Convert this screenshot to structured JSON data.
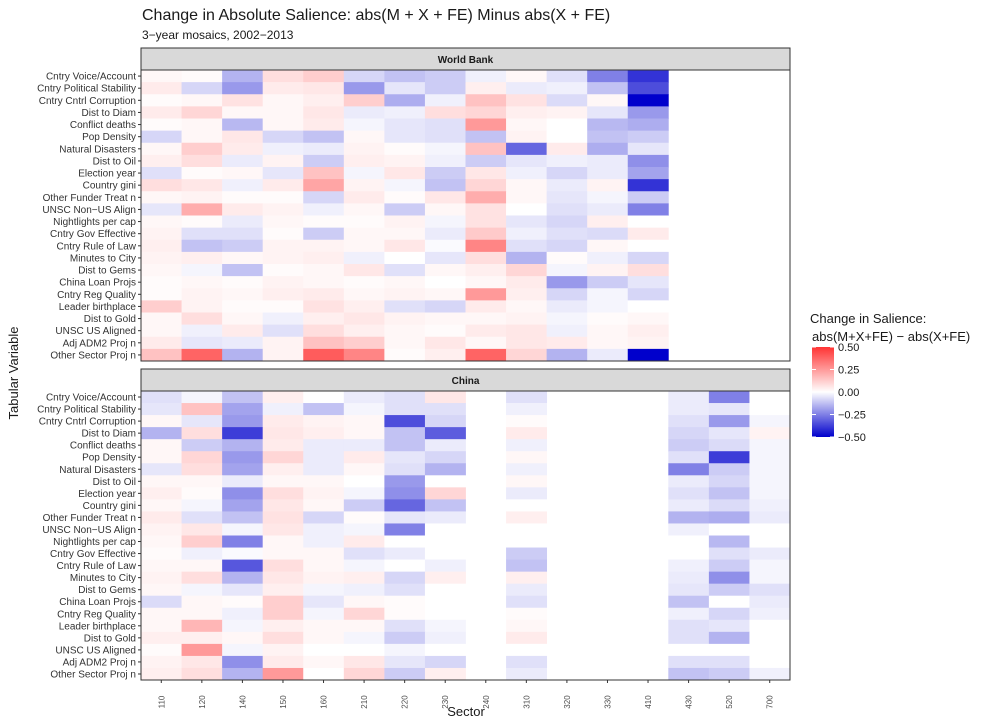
{
  "chart_data": {
    "type": "heatmap",
    "title": "Change in Absolute Salience: abs(M + X + FE) Minus abs(X + FE)",
    "subtitle": "3−year mosaics, 2002−2013",
    "xlabel": "Sector",
    "ylabel": "Tabular Variable",
    "x_categories": [
      "110",
      "120",
      "140",
      "150",
      "160",
      "210",
      "220",
      "230",
      "240",
      "310",
      "320",
      "330",
      "410",
      "430",
      "520",
      "700"
    ],
    "y_categories": [
      "Cntry Voice/Account",
      "Cntry Political Stability",
      "Cntry Cntrl Corruption",
      "Dist to Diam",
      "Conflict deaths",
      "Pop Density",
      "Natural Disasters",
      "Dist to Oil",
      "Election year",
      "Country gini",
      "Other Funder Treat n",
      "UNSC Non−US Align",
      "Nightlights per cap",
      "Cntry Gov Effective",
      "Cntry Rule of Law",
      "Minutes to City",
      "Dist to Gems",
      "China Loan Projs",
      "Cntry Reg Quality",
      "Leader birthplace",
      "Dist to Gold",
      "UNSC US Aligned",
      "Adj ADM2 Proj n",
      "Other Sector Proj n"
    ],
    "legend": {
      "title_line1": "Change in Salience:",
      "title_line2": "abs(M+X+FE) − abs(X+FE)",
      "ticks": [
        "0.50",
        "0.25",
        "0.00",
        "−0.25",
        "−0.50"
      ],
      "tick_values": [
        0.5,
        0.25,
        0,
        -0.25,
        -0.5
      ],
      "range": [
        -0.5,
        0.5
      ],
      "colors": {
        "high": "#ff3333",
        "mid": "#ffffff",
        "low": "#0000cc"
      },
      "position": "right"
    },
    "panels": [
      {
        "name": "World Bank",
        "sectors": [
          "110",
          "120",
          "140",
          "150",
          "160",
          "210",
          "220",
          "230",
          "240",
          "310",
          "320",
          "330",
          "410"
        ],
        "values": [
          [
            0.02,
            0.01,
            -0.15,
            0.08,
            0.12,
            -0.08,
            -0.12,
            -0.1,
            -0.03,
            0.02,
            -0.06,
            -0.25,
            -0.4
          ],
          [
            0.05,
            -0.08,
            -0.2,
            0.05,
            0.06,
            -0.2,
            -0.05,
            -0.1,
            0.04,
            -0.04,
            -0.03,
            -0.12,
            -0.35
          ],
          [
            0.01,
            0.02,
            0.07,
            0.02,
            0.04,
            0.12,
            -0.16,
            -0.03,
            0.15,
            0.07,
            -0.07,
            0.02,
            -0.5
          ],
          [
            0.05,
            0.1,
            0.02,
            0.02,
            0.06,
            -0.04,
            -0.03,
            0.08,
            0.1,
            0.04,
            0.03,
            -0.05,
            -0.2
          ],
          [
            0.01,
            0.02,
            -0.14,
            0.02,
            0.05,
            -0.02,
            -0.05,
            -0.06,
            0.25,
            0.02,
            0.0,
            -0.14,
            -0.16
          ],
          [
            -0.08,
            0.02,
            0.06,
            -0.08,
            -0.12,
            0.02,
            -0.05,
            -0.06,
            -0.12,
            0.03,
            0.0,
            -0.12,
            -0.1
          ],
          [
            0.02,
            0.12,
            0.05,
            -0.03,
            -0.04,
            0.03,
            0.01,
            -0.02,
            0.15,
            -0.3,
            0.05,
            -0.16,
            -0.05
          ],
          [
            0.04,
            0.08,
            -0.04,
            0.03,
            -0.1,
            0.04,
            0.03,
            -0.03,
            -0.1,
            -0.05,
            -0.03,
            -0.04,
            -0.22
          ],
          [
            -0.06,
            0.01,
            0.02,
            -0.05,
            0.15,
            -0.02,
            0.06,
            -0.1,
            0.06,
            -0.03,
            -0.08,
            -0.04,
            -0.18
          ],
          [
            0.08,
            0.06,
            -0.03,
            0.05,
            0.22,
            0.03,
            -0.02,
            -0.12,
            0.1,
            0.02,
            -0.04,
            0.03,
            -0.4
          ],
          [
            0.02,
            0.03,
            0.01,
            0.01,
            -0.08,
            0.05,
            0.01,
            0.06,
            0.2,
            0.02,
            -0.05,
            -0.02,
            -0.1
          ],
          [
            -0.05,
            0.2,
            0.05,
            0.03,
            -0.03,
            0.02,
            -0.1,
            0.02,
            0.07,
            0.0,
            -0.06,
            -0.04,
            -0.25
          ],
          [
            0.02,
            0.01,
            -0.04,
            0.02,
            0.01,
            0.01,
            0.03,
            -0.02,
            0.07,
            -0.05,
            -0.08,
            0.04,
            0.0
          ],
          [
            0.03,
            -0.06,
            -0.06,
            0.01,
            -0.1,
            0.02,
            0.02,
            -0.04,
            0.13,
            -0.03,
            -0.06,
            -0.07,
            0.05
          ],
          [
            0.04,
            -0.12,
            -0.1,
            0.03,
            0.03,
            0.02,
            0.06,
            -0.01,
            0.3,
            -0.06,
            -0.08,
            0.02,
            0.0
          ],
          [
            0.03,
            0.04,
            0.02,
            0.03,
            0.04,
            -0.03,
            0.0,
            -0.05,
            0.08,
            -0.15,
            0.01,
            -0.03,
            -0.08
          ],
          [
            0.02,
            -0.02,
            -0.12,
            0.01,
            0.02,
            0.06,
            -0.06,
            0.02,
            0.04,
            0.1,
            -0.02,
            0.03,
            0.08
          ],
          [
            0.01,
            0.02,
            0.01,
            0.03,
            0.02,
            0.01,
            0.02,
            0.0,
            0.02,
            0.05,
            -0.2,
            -0.1,
            -0.05
          ],
          [
            0.01,
            0.03,
            0.02,
            0.04,
            0.05,
            0.02,
            0.03,
            0.02,
            0.25,
            0.04,
            -0.08,
            -0.02,
            -0.08
          ],
          [
            0.12,
            0.03,
            0.01,
            0.01,
            0.07,
            0.04,
            -0.06,
            -0.08,
            0.05,
            0.02,
            -0.04,
            -0.02,
            0.0
          ],
          [
            0.02,
            0.08,
            0.02,
            -0.03,
            0.04,
            0.06,
            0.03,
            0.02,
            0.02,
            0.03,
            -0.02,
            0.01,
            0.02
          ],
          [
            0.02,
            -0.03,
            0.05,
            -0.06,
            0.08,
            0.04,
            0.02,
            0.01,
            0.05,
            0.06,
            -0.03,
            0.02,
            0.04
          ],
          [
            0.05,
            -0.05,
            -0.04,
            0.03,
            0.15,
            0.12,
            0.02,
            0.06,
            0.02,
            0.06,
            0.05,
            0.02,
            0.03
          ],
          [
            0.15,
            0.38,
            -0.15,
            0.03,
            0.4,
            0.3,
            0.01,
            0.04,
            0.38,
            0.1,
            -0.15,
            -0.04,
            -0.62
          ]
        ]
      },
      {
        "name": "China",
        "sectors": [
          "110",
          "120",
          "140",
          "150",
          "160",
          "210",
          "220",
          "230",
          "310",
          "430",
          "520",
          "700"
        ],
        "values": [
          [
            -0.06,
            -0.02,
            -0.12,
            0.04,
            0.0,
            -0.04,
            -0.06,
            0.06,
            -0.06,
            -0.04,
            -0.25,
            0.0
          ],
          [
            -0.05,
            0.15,
            -0.18,
            -0.03,
            -0.12,
            -0.02,
            -0.06,
            -0.06,
            -0.03,
            -0.04,
            -0.05,
            0.0
          ],
          [
            0.02,
            -0.05,
            -0.2,
            0.05,
            0.03,
            0.02,
            -0.35,
            -0.08,
            0.01,
            -0.06,
            -0.2,
            -0.02
          ],
          [
            -0.15,
            0.08,
            -0.38,
            0.06,
            0.04,
            0.02,
            -0.12,
            -0.32,
            0.05,
            -0.08,
            -0.05,
            0.03
          ],
          [
            0.02,
            -0.1,
            -0.15,
            0.05,
            -0.04,
            -0.04,
            -0.12,
            -0.04,
            -0.03,
            -0.1,
            -0.07,
            -0.02
          ],
          [
            0.02,
            0.1,
            -0.2,
            0.1,
            -0.04,
            0.05,
            -0.05,
            -0.08,
            0.02,
            -0.06,
            -0.38,
            -0.02
          ],
          [
            -0.05,
            0.08,
            -0.18,
            0.04,
            -0.04,
            0.02,
            -0.06,
            -0.15,
            -0.03,
            -0.25,
            -0.1,
            -0.02
          ],
          [
            0.02,
            0.02,
            -0.04,
            0.02,
            0.02,
            0.0,
            -0.2,
            0.0,
            0.02,
            -0.04,
            -0.08,
            -0.02
          ],
          [
            0.04,
            0.01,
            -0.22,
            0.08,
            0.03,
            -0.02,
            -0.22,
            0.1,
            -0.04,
            -0.06,
            -0.12,
            -0.02
          ],
          [
            0.02,
            -0.02,
            -0.18,
            0.06,
            0.02,
            -0.1,
            -0.3,
            -0.12,
            0.0,
            -0.04,
            -0.07,
            -0.03
          ],
          [
            0.05,
            -0.06,
            -0.12,
            0.07,
            -0.08,
            0.01,
            -0.05,
            -0.04,
            0.04,
            -0.15,
            -0.16,
            -0.04
          ],
          [
            0.03,
            0.06,
            -0.02,
            0.06,
            -0.03,
            -0.02,
            -0.25,
            0.0,
            0.0,
            -0.03,
            0.0,
            0.0
          ],
          [
            0.02,
            0.12,
            -0.25,
            0.02,
            -0.03,
            0.05,
            0.0,
            0.0,
            0.0,
            0.0,
            -0.14,
            0.0
          ],
          [
            0.01,
            -0.03,
            -0.01,
            0.02,
            0.02,
            -0.06,
            -0.04,
            0.0,
            -0.1,
            0.0,
            -0.06,
            -0.04
          ],
          [
            0.02,
            0.02,
            -0.33,
            0.08,
            0.02,
            -0.02,
            0.0,
            -0.03,
            -0.12,
            -0.03,
            -0.1,
            -0.02
          ],
          [
            0.03,
            0.08,
            -0.15,
            0.06,
            0.03,
            0.04,
            -0.08,
            0.04,
            0.04,
            -0.04,
            -0.22,
            -0.02
          ],
          [
            0.02,
            -0.02,
            -0.05,
            0.04,
            -0.02,
            -0.03,
            -0.06,
            0.0,
            -0.04,
            -0.05,
            -0.1,
            -0.06
          ],
          [
            -0.07,
            0.02,
            0.01,
            0.12,
            -0.05,
            0.02,
            0.01,
            0.0,
            -0.06,
            -0.12,
            0.0,
            -0.04
          ],
          [
            0.02,
            0.02,
            -0.03,
            0.12,
            -0.02,
            0.1,
            0.01,
            0.0,
            0.01,
            -0.03,
            -0.08,
            -0.03
          ],
          [
            0.02,
            0.18,
            -0.02,
            0.04,
            0.02,
            0.02,
            -0.06,
            -0.02,
            0.02,
            -0.06,
            -0.05,
            0.0
          ],
          [
            0.04,
            0.04,
            0.02,
            0.08,
            0.02,
            -0.02,
            -0.1,
            -0.03,
            0.05,
            -0.06,
            -0.15,
            0.0
          ],
          [
            0.01,
            0.25,
            -0.02,
            0.03,
            0.0,
            0.0,
            -0.02,
            0.0,
            0.0,
            0.0,
            0.0,
            0.0
          ],
          [
            0.03,
            0.06,
            -0.22,
            0.05,
            0.02,
            0.06,
            -0.05,
            -0.08,
            -0.06,
            -0.06,
            -0.06,
            0.0
          ],
          [
            0.04,
            0.08,
            -0.15,
            0.25,
            0.0,
            0.1,
            -0.1,
            0.04,
            -0.04,
            -0.12,
            -0.1,
            -0.03
          ]
        ]
      }
    ]
  }
}
